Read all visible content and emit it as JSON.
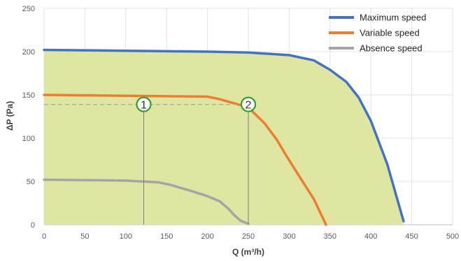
{
  "chart_data": {
    "type": "line",
    "title": "",
    "xlabel": "Q (m³/h)",
    "ylabel": "ΔP (Pa)",
    "xlim": [
      0,
      500
    ],
    "ylim": [
      0,
      250
    ],
    "x_ticks": [
      0,
      50,
      100,
      150,
      200,
      250,
      300,
      350,
      400,
      450,
      500
    ],
    "y_ticks": [
      0,
      50,
      100,
      150,
      200,
      250
    ],
    "grid": true,
    "legend_position": "top-right",
    "shaded_region": {
      "color": "#dfe6a2",
      "bounded_by": "Maximum speed"
    },
    "series": [
      {
        "name": "Maximum speed",
        "color": "#4472c4",
        "x": [
          0,
          50,
          100,
          150,
          200,
          250,
          300,
          330,
          350,
          370,
          385,
          400,
          420,
          440
        ],
        "y": [
          202,
          201.5,
          201,
          200.5,
          200,
          199,
          196,
          190,
          179,
          165,
          147,
          120,
          70,
          4
        ]
      },
      {
        "name": "Variable speed",
        "color": "#ed7d31",
        "x": [
          0,
          50,
          100,
          150,
          200,
          215,
          230,
          245,
          255,
          270,
          285,
          295,
          305,
          315,
          330,
          345
        ],
        "y": [
          150,
          149.5,
          149,
          148.5,
          148,
          145,
          141,
          137,
          131,
          117,
          98,
          82,
          67,
          52,
          30,
          0
        ]
      },
      {
        "name": "Absence speed",
        "color": "#a5a5a5",
        "x": [
          0,
          50,
          100,
          140,
          155,
          180,
          200,
          215,
          225,
          233,
          240,
          250
        ],
        "y": [
          52,
          51.5,
          51,
          49,
          46,
          39,
          33,
          27,
          19,
          11,
          5,
          1
        ]
      }
    ],
    "reference_line": {
      "y": 139,
      "x_from": 0,
      "x_to": 250,
      "color": "#a6a6a6",
      "style": "dashed"
    },
    "annotations": [
      {
        "label": "1",
        "x": 122,
        "y": 139,
        "drop_to_x_axis": true
      },
      {
        "label": "2",
        "x": 250,
        "y": 139,
        "drop_to_x_axis": true
      }
    ],
    "marker_color": "#33a02c"
  }
}
